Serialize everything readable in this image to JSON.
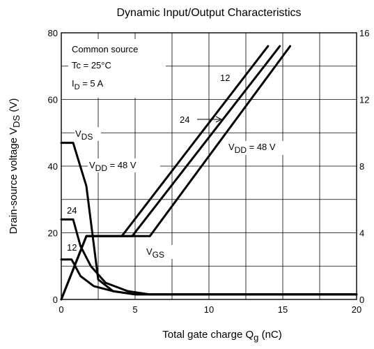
{
  "chart_data": {
    "type": "line",
    "title": "Dynamic Input/Output Characteristics",
    "xlabel": {
      "main": "Total gate charge   Q",
      "sub": "g",
      "unit": "   (nC)"
    },
    "ylabel": {
      "main": "Drain-source voltage   V",
      "sub": "DS",
      "unit": "   (V)"
    },
    "xlim": [
      0,
      20
    ],
    "ylim": [
      0,
      80
    ],
    "y2lim": [
      0,
      16
    ],
    "x_ticks": [
      0,
      5,
      10,
      15,
      20
    ],
    "y_ticks": [
      0,
      20,
      40,
      60,
      80
    ],
    "y2_ticks": [
      0,
      4,
      8,
      12,
      16
    ],
    "grid": true,
    "conditions": {
      "line1": "Common source",
      "line2": "Tc = 25°C",
      "line3_main": "I",
      "line3_sub": "D",
      "line3_rest": " = 5 A"
    },
    "labels": {
      "vds_main": "V",
      "vds_sub": "DS",
      "vgs_main": "V",
      "vgs_sub": "GS",
      "vdd48_left_main": "V",
      "vdd48_left_sub": "DD",
      "vdd48_left_rest": " = 48 V",
      "vdd48_right_main": "V",
      "vdd48_right_sub": "DD",
      "vdd48_right_rest": " = 48 V",
      "v24_left": "24",
      "v12_left": "12",
      "v24_right": "24",
      "v12_right": "12"
    },
    "series": [
      {
        "kind": "VDS",
        "vdd": "48",
        "points": [
          [
            0,
            47
          ],
          [
            0.8,
            47
          ],
          [
            1.7,
            34
          ],
          [
            2.5,
            6
          ],
          [
            3.5,
            2.5
          ],
          [
            5,
            1.5
          ],
          [
            6.5,
            1.5
          ],
          [
            20,
            1.5
          ]
        ]
      },
      {
        "kind": "VDS",
        "vdd": "24",
        "points": [
          [
            0,
            24
          ],
          [
            0.8,
            24
          ],
          [
            1.3,
            16
          ],
          [
            2,
            10
          ],
          [
            3,
            5
          ],
          [
            4.5,
            2.5
          ],
          [
            6,
            1.5
          ],
          [
            20,
            1.5
          ]
        ]
      },
      {
        "kind": "VDS",
        "vdd": "12",
        "points": [
          [
            0,
            12
          ],
          [
            0.7,
            12
          ],
          [
            1.3,
            7
          ],
          [
            2.2,
            4
          ],
          [
            3.5,
            2.5
          ],
          [
            5,
            1.5
          ],
          [
            20,
            1.5
          ]
        ]
      },
      {
        "kind": "VGS",
        "vdd": "12",
        "points": [
          [
            0,
            0
          ],
          [
            1.7,
            3.8
          ],
          [
            4.1,
            3.8
          ],
          [
            14.0,
            15.2
          ]
        ]
      },
      {
        "kind": "VGS",
        "vdd": "24",
        "points": [
          [
            0,
            0
          ],
          [
            1.7,
            3.8
          ],
          [
            4.8,
            3.8
          ],
          [
            14.8,
            15.2
          ]
        ]
      },
      {
        "kind": "VGS",
        "vdd": "48",
        "points": [
          [
            0,
            0
          ],
          [
            1.7,
            3.8
          ],
          [
            6.0,
            3.8
          ],
          [
            15.5,
            15.2
          ]
        ]
      }
    ]
  }
}
